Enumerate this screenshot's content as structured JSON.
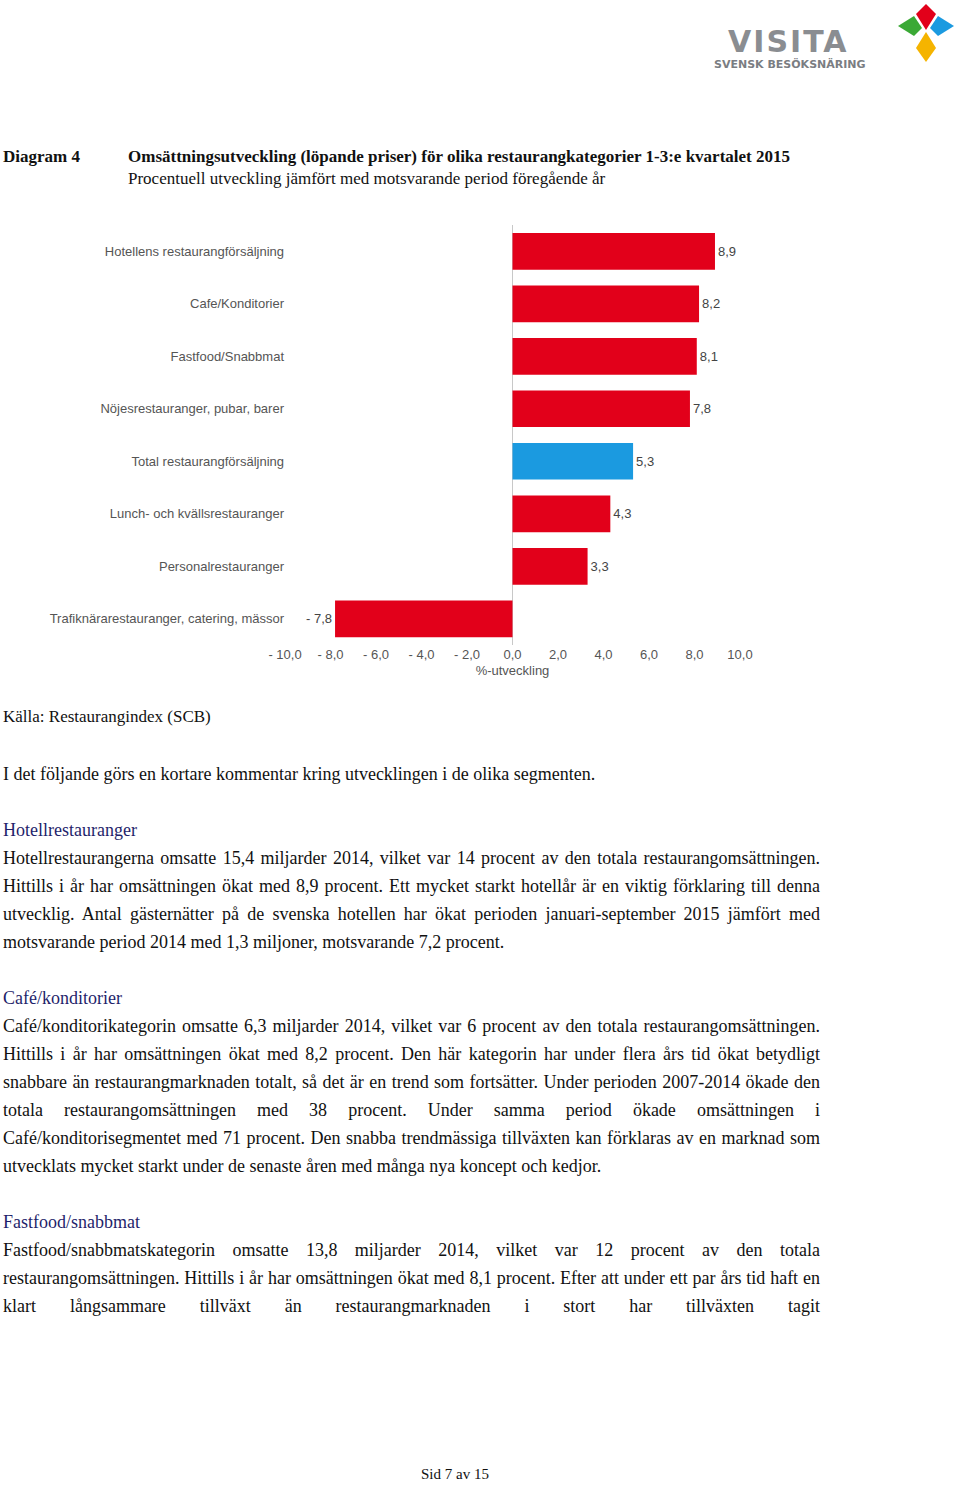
{
  "logo": {
    "name": "VISITA",
    "tagline": "SVENSK BESÖKSNÄRING"
  },
  "diagram": {
    "label": "Diagram 4",
    "title": "Omsättningsutveckling (löpande priser) för olika restaurangkategorier 1-3:e kvartalet 2015",
    "subtitle": "Procentuell utveckling jämfört med motsvarande period föregående år"
  },
  "chart_data": {
    "type": "bar",
    "orientation": "horizontal",
    "categories": [
      "Hotellens restaurangförsäljning",
      "Cafe/Konditorier",
      "Fastfood/Snabbmat",
      "Nöjesrestauranger, pubar, barer",
      "Total restaurangförsäljning",
      "Lunch- och kvällsrestauranger",
      "Personalrestauranger",
      "Trafiknärarestauranger, catering, mässor"
    ],
    "values": [
      8.9,
      8.2,
      8.1,
      7.8,
      5.3,
      4.3,
      3.3,
      -7.8
    ],
    "value_labels": [
      "8,9",
      "8,2",
      "8,1",
      "7,8",
      "5,3",
      "4,3",
      "3,3",
      "- 7,8"
    ],
    "colors": [
      "#e2001a",
      "#e2001a",
      "#e2001a",
      "#e2001a",
      "#1b9ae0",
      "#e2001a",
      "#e2001a",
      "#e2001a"
    ],
    "data_labels": true,
    "x_label": "%-utveckling",
    "xlim": [
      -10,
      10
    ],
    "xticks": [
      {
        "value": -10,
        "label": "- 10,0"
      },
      {
        "value": -8,
        "label": "- 8,0"
      },
      {
        "value": -6,
        "label": "- 6,0"
      },
      {
        "value": -4,
        "label": "- 4,0"
      },
      {
        "value": -2,
        "label": "- 2,0"
      },
      {
        "value": 0,
        "label": "0,0"
      },
      {
        "value": 2,
        "label": "2,0"
      },
      {
        "value": 4,
        "label": "4,0"
      },
      {
        "value": 6,
        "label": "6,0"
      },
      {
        "value": 8,
        "label": "8,0"
      },
      {
        "value": 10,
        "label": "10,0"
      }
    ],
    "grid": false
  },
  "source": "Källa: Restaurangindex (SCB)",
  "intro": "I det följande görs en kortare kommentar kring utvecklingen i de olika segmenten.",
  "sections": [
    {
      "heading": "Hotellrestauranger",
      "text": "Hotellrestaurangerna omsatte 15,4 miljarder 2014, vilket var 14 procent av den totala restaurangomsättningen. Hittills i år har omsättningen ökat med 8,9 procent. Ett mycket starkt hotellår är en viktig förklaring till denna utvecklig. Antal gästernätter på de svenska hotellen har ökat perioden januari-september 2015 jämfört med motsvarande period 2014 med 1,3 miljoner, motsvarande 7,2 procent."
    },
    {
      "heading": "Café/konditorier",
      "text": "Café/konditorikategorin omsatte 6,3 miljarder 2014, vilket var 6 procent av den totala restaurangomsättningen. Hittills i år har omsättningen ökat med 8,2 procent. Den här kategorin har under flera års tid ökat betydligt snabbare än restaurangmarknaden totalt, så det är en trend som fortsätter. Under perioden 2007-2014 ökade den totala restaurangomsättningen med 38 procent. Under samma period ökade omsättningen i Café/konditorisegmentet med 71 procent. Den snabba trendmässiga tillväxten kan förklaras av en marknad som utvecklats mycket starkt under de senaste åren med många nya koncept och kedjor."
    },
    {
      "heading": "Fastfood/snabbmat",
      "text": "Fastfood/snabbmatskategorin omsatte 13,8 miljarder 2014, vilket var 12 procent av den totala restaurangomsättningen. Hittills i år har omsättningen ökat med 8,1 procent. Efter att under ett par års tid haft en klart långsammare tillväxt än restaurangmarknaden i stort har tillväxten tagit"
    }
  ],
  "footer": "Sid 7 av 15"
}
